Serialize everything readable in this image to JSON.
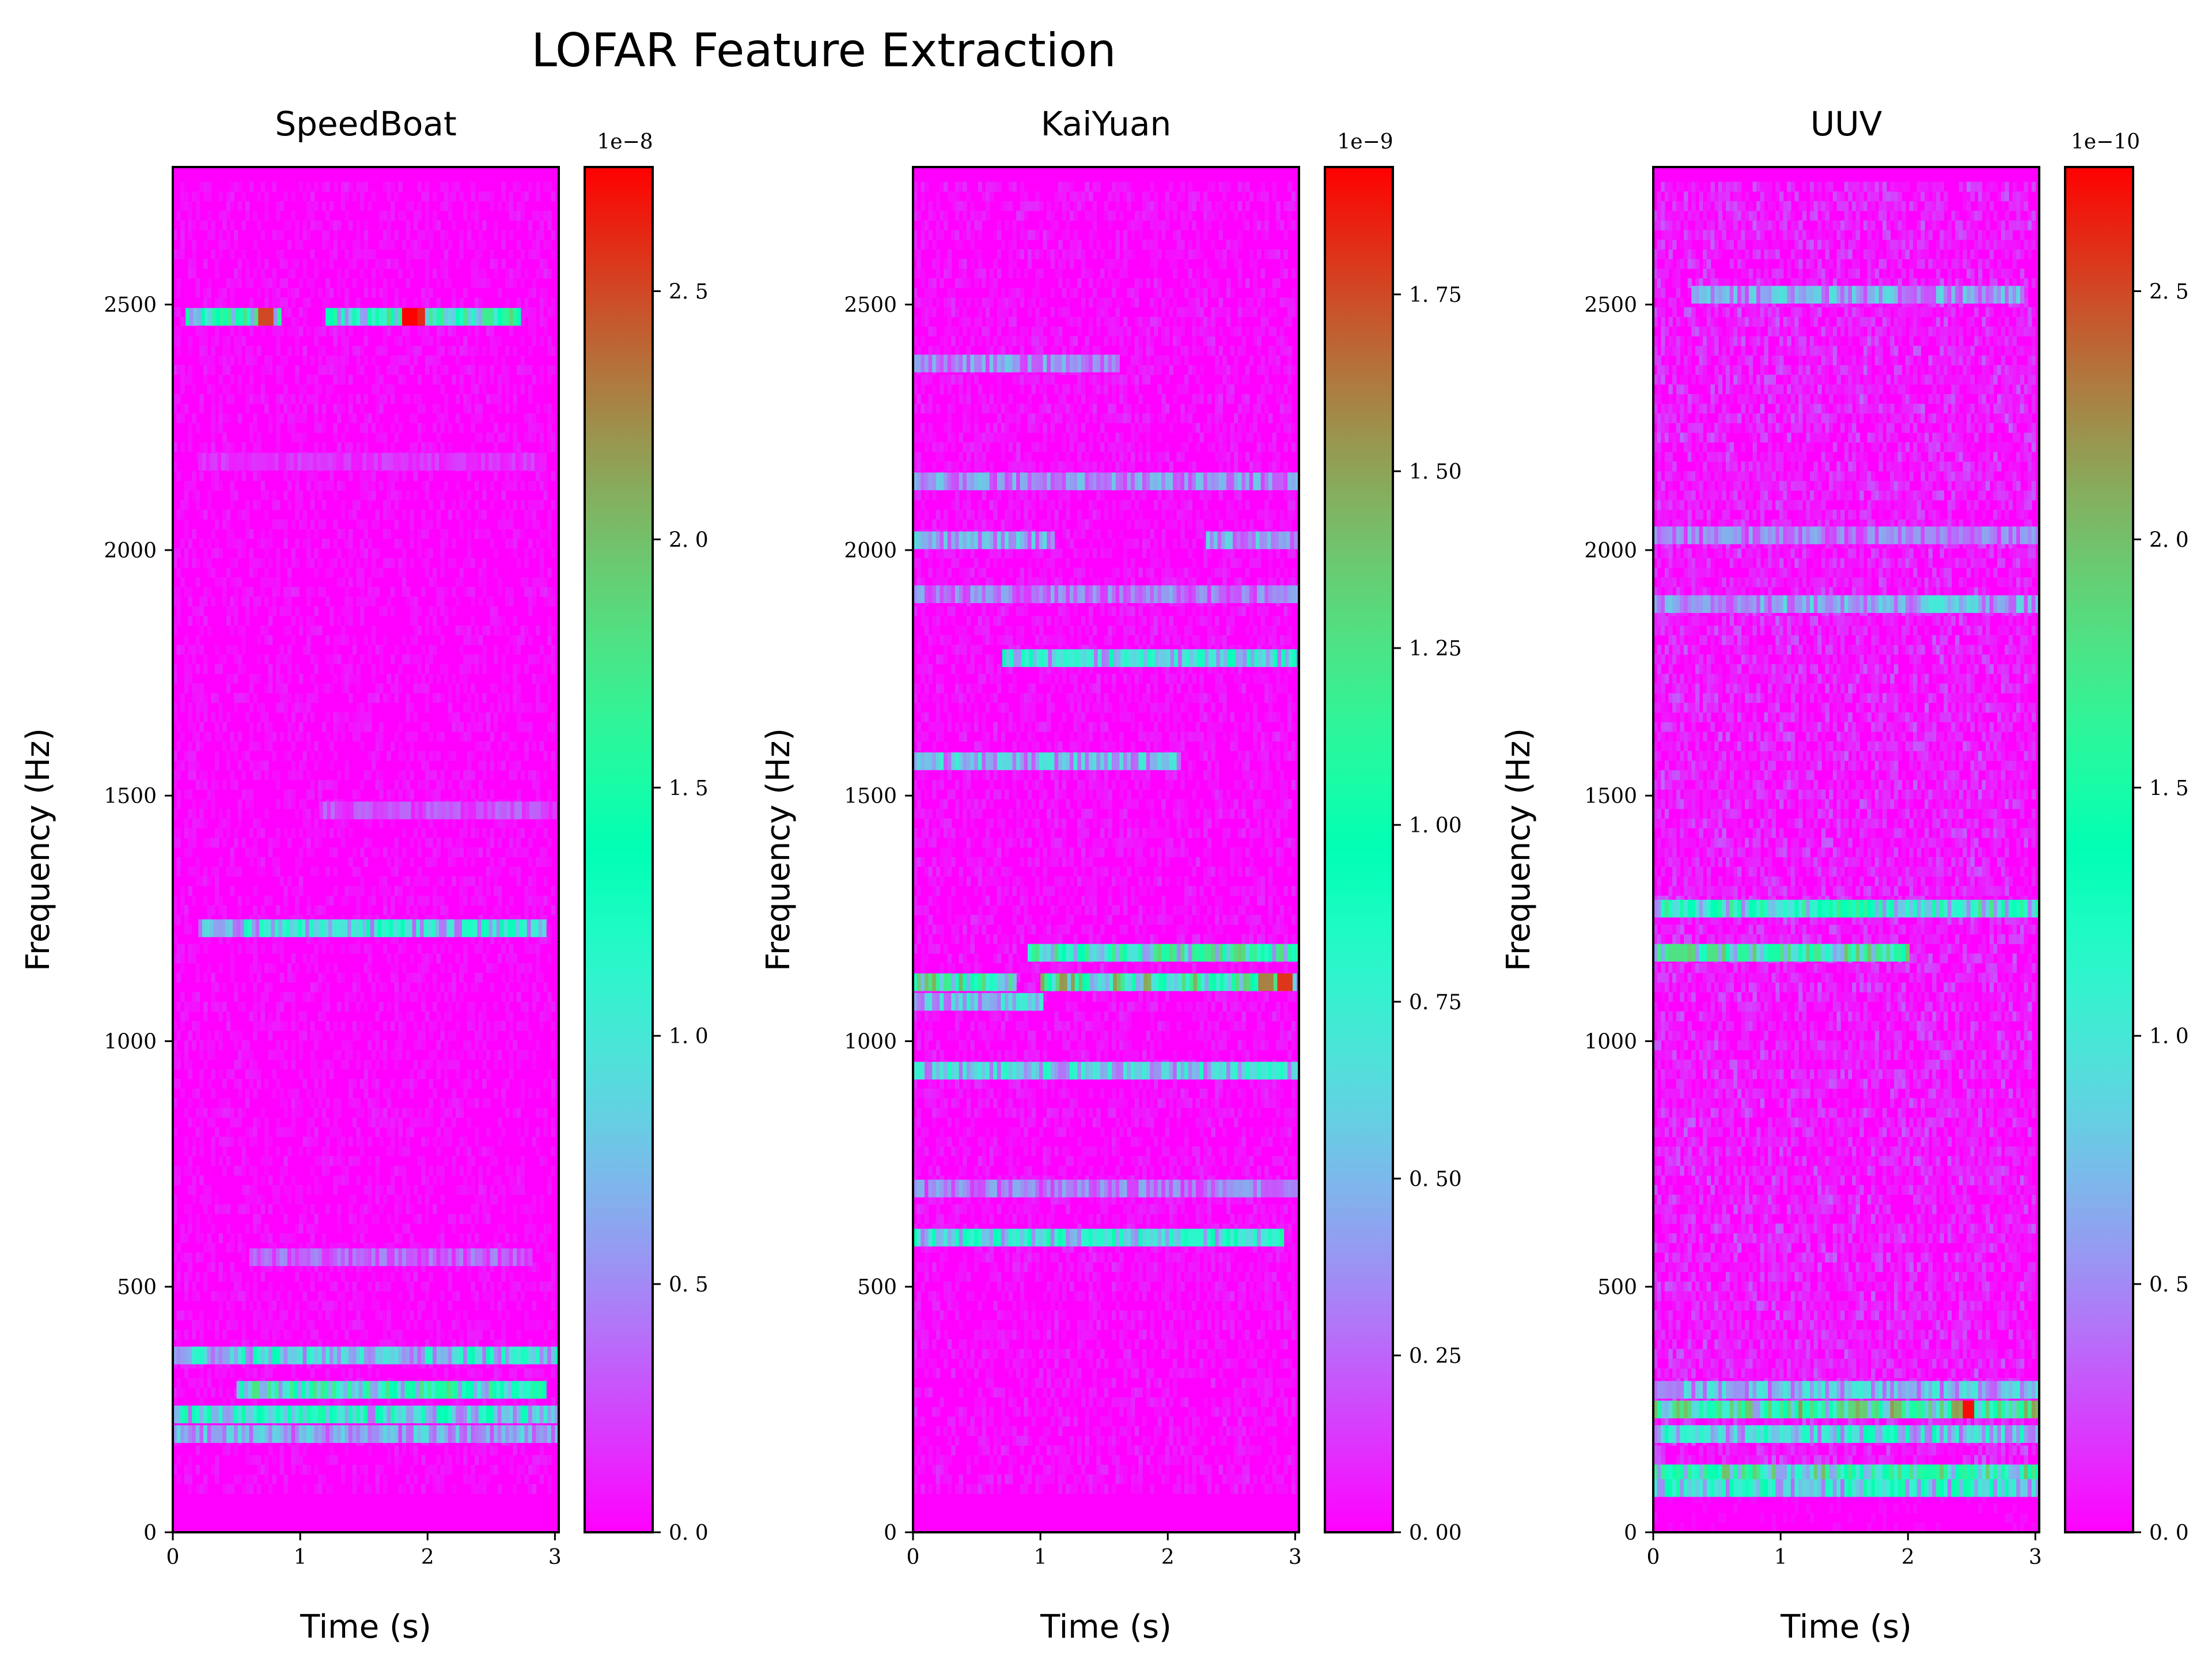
{
  "chart_data": {
    "type": "heatmap",
    "title": "LOFAR Feature Extraction",
    "colormap": "rainbow",
    "panels": [
      {
        "id": "speedboat",
        "title": "SpeedBoat",
        "xlabel": "Time (s)",
        "ylabel": "Frequency (Hz)",
        "xlim": [
          0,
          3.03
        ],
        "ylim": [
          0,
          2780
        ],
        "xticks": [
          0,
          1,
          2,
          3
        ],
        "xtick_labels": [
          "0",
          "1",
          "2",
          "3"
        ],
        "yticks": [
          0,
          500,
          1000,
          1500,
          2000,
          2500
        ],
        "ytick_labels": [
          "0",
          "500",
          "1000",
          "1500",
          "2000",
          "2500"
        ],
        "colorbar": {
          "max": 2.75,
          "offset_label": "1e−8",
          "ticks": [
            0.0,
            0.5,
            1.0,
            1.5,
            2.0,
            2.5
          ],
          "tick_labels": [
            "0. 0",
            "0. 5",
            "1. 0",
            "1. 5",
            "2. 0",
            "2. 5"
          ]
        },
        "noise_level": 0.08,
        "lines": [
          {
            "freq": 2475,
            "level": 0.7,
            "t_ranges": [
              [
                0.1,
                0.85
              ],
              [
                1.2,
                2.7
              ]
            ],
            "hot": [
              [
                0.72,
                2.5
              ],
              [
                1.85,
                2.75
              ],
              [
                1.93,
                2.6
              ],
              [
                2.45,
                1.7
              ]
            ]
          },
          {
            "freq": 2180,
            "level": 0.1,
            "t_ranges": [
              [
                0.2,
                2.9
              ]
            ],
            "hot": []
          },
          {
            "freq": 1470,
            "level": 0.15,
            "t_ranges": [
              [
                1.15,
                3.0
              ]
            ],
            "hot": []
          },
          {
            "freq": 1230,
            "level": 0.5,
            "t_ranges": [
              [
                0.2,
                2.9
              ]
            ],
            "hot": [
              [
                2.3,
                1.2
              ]
            ]
          },
          {
            "freq": 360,
            "level": 0.5,
            "t_ranges": [
              [
                0.0,
                3.0
              ]
            ],
            "hot": []
          },
          {
            "freq": 290,
            "level": 0.7,
            "t_ranges": [
              [
                0.5,
                2.9
              ]
            ],
            "hot": [
              [
                2.1,
                1.5
              ]
            ]
          },
          {
            "freq": 240,
            "level": 0.55,
            "t_ranges": [
              [
                0.0,
                3.0
              ]
            ],
            "hot": []
          },
          {
            "freq": 200,
            "level": 0.35,
            "t_ranges": [
              [
                0.0,
                3.0
              ]
            ],
            "hot": []
          },
          {
            "freq": 560,
            "level": 0.2,
            "t_ranges": [
              [
                0.6,
                2.8
              ]
            ],
            "hot": []
          }
        ]
      },
      {
        "id": "kaiyuan",
        "title": "KaiYuan",
        "xlabel": "Time (s)",
        "ylabel": "Frequency (Hz)",
        "xlim": [
          0,
          3.03
        ],
        "ylim": [
          0,
          2780
        ],
        "xticks": [
          0,
          1,
          2,
          3
        ],
        "xtick_labels": [
          "0",
          "1",
          "2",
          "3"
        ],
        "yticks": [
          0,
          500,
          1000,
          1500,
          2000,
          2500
        ],
        "ytick_labels": [
          "0",
          "500",
          "1000",
          "1500",
          "2000",
          "2500"
        ],
        "colorbar": {
          "max": 1.93,
          "offset_label": "1e−9",
          "ticks": [
            0.0,
            0.25,
            0.5,
            0.75,
            1.0,
            1.25,
            1.5,
            1.75
          ],
          "tick_labels": [
            "0. 00",
            "0. 25",
            "0. 50",
            "0. 75",
            "1. 00",
            "1. 25",
            "1. 50",
            "1. 75"
          ]
        },
        "noise_level": 0.1,
        "lines": [
          {
            "freq": 2380,
            "level": 0.3,
            "t_ranges": [
              [
                0.0,
                1.6
              ]
            ],
            "hot": []
          },
          {
            "freq": 2140,
            "level": 0.3,
            "t_ranges": [
              [
                0.0,
                3.0
              ]
            ],
            "hot": []
          },
          {
            "freq": 2020,
            "level": 0.35,
            "t_ranges": [
              [
                0.0,
                1.1
              ],
              [
                2.3,
                3.0
              ]
            ],
            "hot": []
          },
          {
            "freq": 1910,
            "level": 0.25,
            "t_ranges": [
              [
                0.0,
                3.0
              ]
            ],
            "hot": []
          },
          {
            "freq": 1780,
            "level": 0.5,
            "t_ranges": [
              [
                0.7,
                3.0
              ]
            ],
            "hot": []
          },
          {
            "freq": 1570,
            "level": 0.4,
            "t_ranges": [
              [
                0.0,
                2.1
              ]
            ],
            "hot": []
          },
          {
            "freq": 1180,
            "level": 0.7,
            "t_ranges": [
              [
                0.9,
                3.0
              ]
            ],
            "hot": [
              [
                2.3,
                1.2
              ],
              [
                2.55,
                1.3
              ]
            ]
          },
          {
            "freq": 1120,
            "level": 0.8,
            "t_ranges": [
              [
                0.0,
                0.8
              ],
              [
                1.0,
                3.0
              ]
            ],
            "hot": [
              [
                2.75,
                1.6
              ],
              [
                2.9,
                1.8
              ]
            ]
          },
          {
            "freq": 1080,
            "level": 0.45,
            "t_ranges": [
              [
                0.0,
                1.0
              ]
            ],
            "hot": []
          },
          {
            "freq": 940,
            "level": 0.45,
            "t_ranges": [
              [
                0.0,
                3.0
              ]
            ],
            "hot": []
          },
          {
            "freq": 600,
            "level": 0.55,
            "t_ranges": [
              [
                0.0,
                2.9
              ]
            ],
            "hot": [
              [
                2.2,
                0.8
              ]
            ]
          },
          {
            "freq": 700,
            "level": 0.25,
            "t_ranges": [
              [
                0.0,
                3.0
              ]
            ],
            "hot": []
          }
        ]
      },
      {
        "id": "uuv",
        "title": "UUV",
        "xlabel": "Time (s)",
        "ylabel": "Frequency (Hz)",
        "xlim": [
          0,
          3.03
        ],
        "ylim": [
          0,
          2780
        ],
        "xticks": [
          0,
          1,
          2,
          3
        ],
        "xtick_labels": [
          "0",
          "1",
          "2",
          "3"
        ],
        "yticks": [
          0,
          500,
          1000,
          1500,
          2000,
          2500
        ],
        "ytick_labels": [
          "0",
          "500",
          "1000",
          "1500",
          "2000",
          "2500"
        ],
        "colorbar": {
          "max": 2.75,
          "offset_label": "1e−10",
          "ticks": [
            0.0,
            0.5,
            1.0,
            1.5,
            2.0,
            2.5
          ],
          "tick_labels": [
            "0. 0",
            "0. 5",
            "1. 0",
            "1. 5",
            "2. 0",
            "2. 5"
          ]
        },
        "noise_level": 0.2,
        "lines": [
          {
            "freq": 2520,
            "level": 0.35,
            "t_ranges": [
              [
                0.3,
                2.9
              ]
            ],
            "hot": []
          },
          {
            "freq": 2030,
            "level": 0.25,
            "t_ranges": [
              [
                0.0,
                3.0
              ]
            ],
            "hot": []
          },
          {
            "freq": 1890,
            "level": 0.35,
            "t_ranges": [
              [
                0.0,
                3.0
              ]
            ],
            "hot": [
              [
                2.2,
                1.0
              ]
            ]
          },
          {
            "freq": 1270,
            "level": 0.65,
            "t_ranges": [
              [
                0.0,
                3.0
              ]
            ],
            "hot": []
          },
          {
            "freq": 1180,
            "level": 0.75,
            "t_ranges": [
              [
                0.0,
                2.0
              ]
            ],
            "hot": [
              [
                0.15,
                1.8
              ],
              [
                0.45,
                1.8
              ],
              [
                0.7,
                1.6
              ],
              [
                0.95,
                1.5
              ]
            ]
          },
          {
            "freq": 250,
            "level": 0.8,
            "t_ranges": [
              [
                0.0,
                3.0
              ]
            ],
            "hot": [
              [
                1.9,
                2.0
              ],
              [
                2.45,
                2.7
              ],
              [
                1.15,
                1.4
              ]
            ]
          },
          {
            "freq": 200,
            "level": 0.5,
            "t_ranges": [
              [
                0.0,
                3.0
              ]
            ],
            "hot": []
          },
          {
            "freq": 120,
            "level": 0.75,
            "t_ranges": [
              [
                0.0,
                3.0
              ]
            ],
            "hot": [
              [
                2.15,
                1.5
              ]
            ]
          },
          {
            "freq": 90,
            "level": 0.55,
            "t_ranges": [
              [
                0.0,
                3.0
              ]
            ],
            "hot": []
          },
          {
            "freq": 290,
            "level": 0.4,
            "t_ranges": [
              [
                0.0,
                3.0
              ]
            ],
            "hot": []
          }
        ]
      }
    ]
  }
}
